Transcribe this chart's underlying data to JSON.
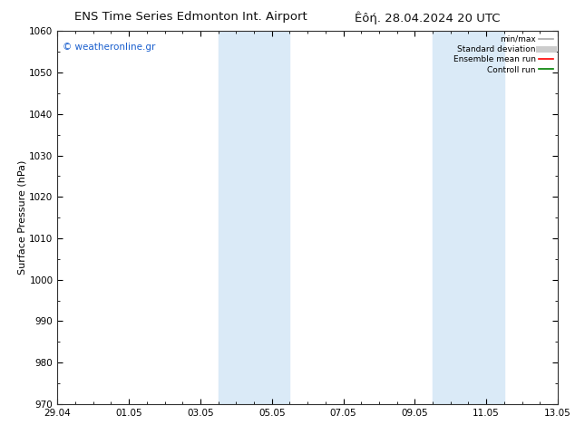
{
  "title_left": "ENS Time Series Edmonton Int. Airport",
  "title_right": "Êôή. 28.04.2024 20 UTC",
  "ylabel": "Surface Pressure (hPa)",
  "xlim_start": 0,
  "xlim_end": 14,
  "ylim": [
    970,
    1060
  ],
  "yticks": [
    970,
    980,
    990,
    1000,
    1010,
    1020,
    1030,
    1040,
    1050,
    1060
  ],
  "xtick_labels": [
    "29.04",
    "01.05",
    "03.05",
    "05.05",
    "07.05",
    "09.05",
    "11.05",
    "13.05"
  ],
  "xtick_positions": [
    0,
    2,
    4,
    6,
    8,
    10,
    12,
    14
  ],
  "shaded_bands": [
    {
      "x_start": 4.5,
      "x_end": 6.5
    },
    {
      "x_start": 10.5,
      "x_end": 12.5
    }
  ],
  "shaded_color": "#daeaf7",
  "watermark_text": "© weatheronline.gr",
  "watermark_color": "#1a5fce",
  "legend_entries": [
    {
      "label": "min/max",
      "color": "#aaaaaa",
      "lw": 1.2
    },
    {
      "label": "Standard deviation",
      "color": "#cccccc",
      "lw": 5
    },
    {
      "label": "Ensemble mean run",
      "color": "red",
      "lw": 1.2
    },
    {
      "label": "Controll run",
      "color": "green",
      "lw": 1.2
    }
  ],
  "bg_color": "#ffffff",
  "title_fontsize": 9.5,
  "axis_label_fontsize": 8,
  "tick_fontsize": 7.5
}
